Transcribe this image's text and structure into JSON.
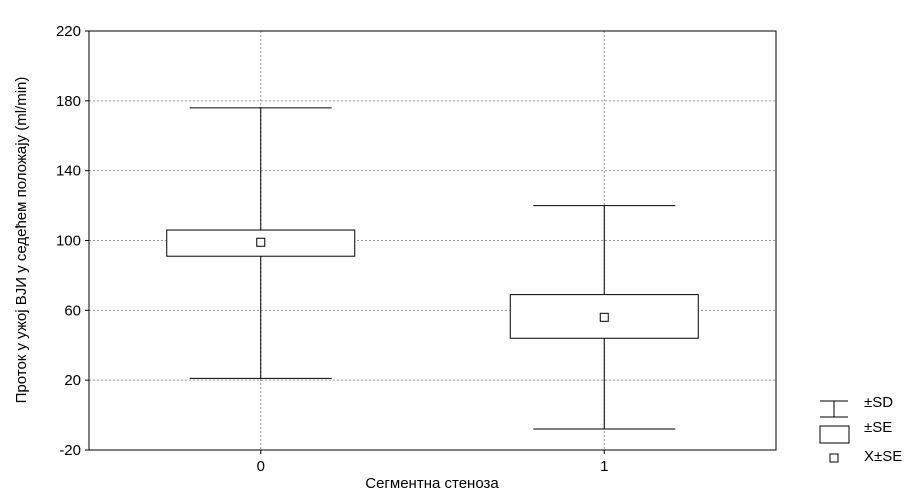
{
  "chart_data": {
    "type": "box",
    "title": "",
    "xlabel": "Сегментна стеноза",
    "ylabel": "Проток у ужој  ВЈИ  у седећем  положају (ml/min)",
    "categories": [
      "0",
      "1"
    ],
    "series": [
      {
        "category": "0",
        "mean": 99,
        "se_low": 91,
        "se_high": 106,
        "sd_low": 21,
        "sd_high": 176
      },
      {
        "category": "1",
        "mean": 56,
        "se_low": 44,
        "se_high": 69,
        "sd_low": -8,
        "sd_high": 120
      }
    ],
    "ylim": [
      -20,
      220
    ],
    "yticks": [
      -20,
      20,
      60,
      100,
      140,
      180,
      220
    ],
    "grid": true,
    "legend": {
      "position": "bottom-right",
      "items": [
        {
          "symbol": "whisker",
          "label": "±SD"
        },
        {
          "symbol": "box",
          "label": "±SE"
        },
        {
          "symbol": "square",
          "label": "X±SE"
        }
      ]
    }
  }
}
